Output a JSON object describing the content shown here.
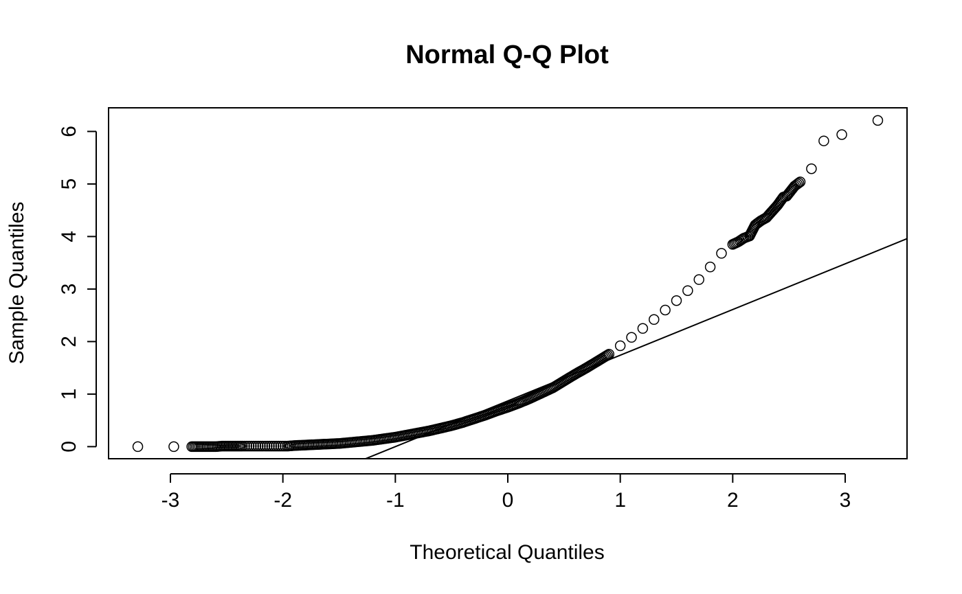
{
  "chart_data": {
    "type": "scatter",
    "title": "Normal Q-Q Plot",
    "xlabel": "Theoretical Quantiles",
    "ylabel": "Sample Quantiles",
    "xlim": [
      -3.55,
      3.55
    ],
    "ylim": [
      -0.23,
      6.45
    ],
    "x_ticks": [
      -3,
      -2,
      -1,
      0,
      1,
      2,
      3
    ],
    "y_ticks": [
      0,
      1,
      2,
      3,
      4,
      5,
      6
    ],
    "grid": false,
    "legend": "none",
    "marker": "open-circle",
    "reference_line": {
      "slope": 0.87,
      "intercept": 0.87
    },
    "series": [
      {
        "points": [
          [
            -3.29,
            0.0
          ],
          [
            -2.97,
            0.0
          ],
          [
            -2.81,
            0.0
          ],
          [
            -2.7,
            0.0
          ],
          [
            -2.6,
            0.0
          ],
          [
            -2.54,
            0.01
          ],
          [
            -2.48,
            0.01
          ],
          [
            -2.42,
            0.01
          ],
          [
            -2.36,
            0.01
          ],
          [
            -2.32,
            0.01
          ],
          [
            -2.28,
            0.01
          ],
          [
            -2.24,
            0.01
          ],
          [
            -2.2,
            0.01
          ],
          [
            -2.16,
            0.01
          ],
          [
            -2.12,
            0.01
          ],
          [
            -2.08,
            0.01
          ],
          [
            -2.04,
            0.01
          ],
          [
            -2.0,
            0.01
          ],
          [
            -1.96,
            0.01
          ],
          [
            -1.9,
            0.02
          ],
          [
            -1.8,
            0.03
          ],
          [
            -1.7,
            0.04
          ],
          [
            -1.6,
            0.05
          ],
          [
            -1.5,
            0.06
          ],
          [
            -1.4,
            0.08
          ],
          [
            -1.3,
            0.1
          ],
          [
            -1.2,
            0.12
          ],
          [
            -1.1,
            0.15
          ],
          [
            -1.0,
            0.18
          ],
          [
            -0.9,
            0.22
          ],
          [
            -0.8,
            0.26
          ],
          [
            -0.7,
            0.3
          ],
          [
            -0.6,
            0.35
          ],
          [
            -0.5,
            0.4
          ],
          [
            -0.4,
            0.46
          ],
          [
            -0.3,
            0.53
          ],
          [
            -0.2,
            0.6
          ],
          [
            -0.1,
            0.68
          ],
          [
            0.0,
            0.75
          ],
          [
            0.1,
            0.83
          ],
          [
            0.2,
            0.92
          ],
          [
            0.3,
            1.02
          ],
          [
            0.4,
            1.12
          ],
          [
            0.5,
            1.25
          ],
          [
            0.6,
            1.38
          ],
          [
            0.7,
            1.5
          ],
          [
            0.8,
            1.63
          ],
          [
            0.9,
            1.76
          ],
          [
            1.0,
            1.92
          ],
          [
            1.1,
            2.08
          ],
          [
            1.2,
            2.25
          ],
          [
            1.3,
            2.42
          ],
          [
            1.4,
            2.6
          ],
          [
            1.5,
            2.78
          ],
          [
            1.6,
            2.97
          ],
          [
            1.7,
            3.18
          ],
          [
            1.8,
            3.42
          ],
          [
            1.9,
            3.68
          ],
          [
            2.0,
            3.85
          ],
          [
            2.05,
            3.9
          ],
          [
            2.1,
            3.97
          ],
          [
            2.15,
            4.01
          ],
          [
            2.2,
            4.22
          ],
          [
            2.25,
            4.3
          ],
          [
            2.3,
            4.36
          ],
          [
            2.35,
            4.48
          ],
          [
            2.4,
            4.6
          ],
          [
            2.45,
            4.75
          ],
          [
            2.48,
            4.77
          ],
          [
            2.55,
            4.96
          ],
          [
            2.6,
            5.04
          ],
          [
            2.7,
            5.29
          ],
          [
            2.81,
            5.82
          ],
          [
            2.97,
            5.94
          ],
          [
            3.29,
            6.21
          ]
        ]
      }
    ]
  }
}
